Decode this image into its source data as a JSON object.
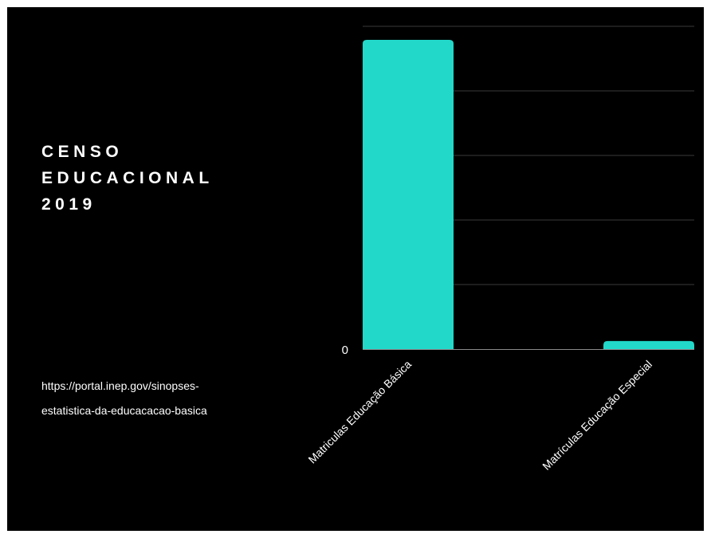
{
  "title_lines": [
    "CENSO",
    "EDUCACIONAL",
    "2019"
  ],
  "source_lines": [
    "https://portal.inep.gov/sinopses-",
    "estatistica-da-educacacao-basica"
  ],
  "chart_data": {
    "type": "bar",
    "categories": [
      "Matriculas Educação Básica",
      "Matrículas Educação Especial"
    ],
    "values": [
      47.9,
      1.25
    ],
    "ylim": [
      0,
      50
    ],
    "ytick_labels": [
      "0"
    ],
    "grid": true,
    "colors": {
      "bar": "#22d8c9",
      "grid": "#3a3a3a",
      "axis": "#8a8a8a",
      "text": "#ffffff",
      "background": "#000000"
    }
  }
}
